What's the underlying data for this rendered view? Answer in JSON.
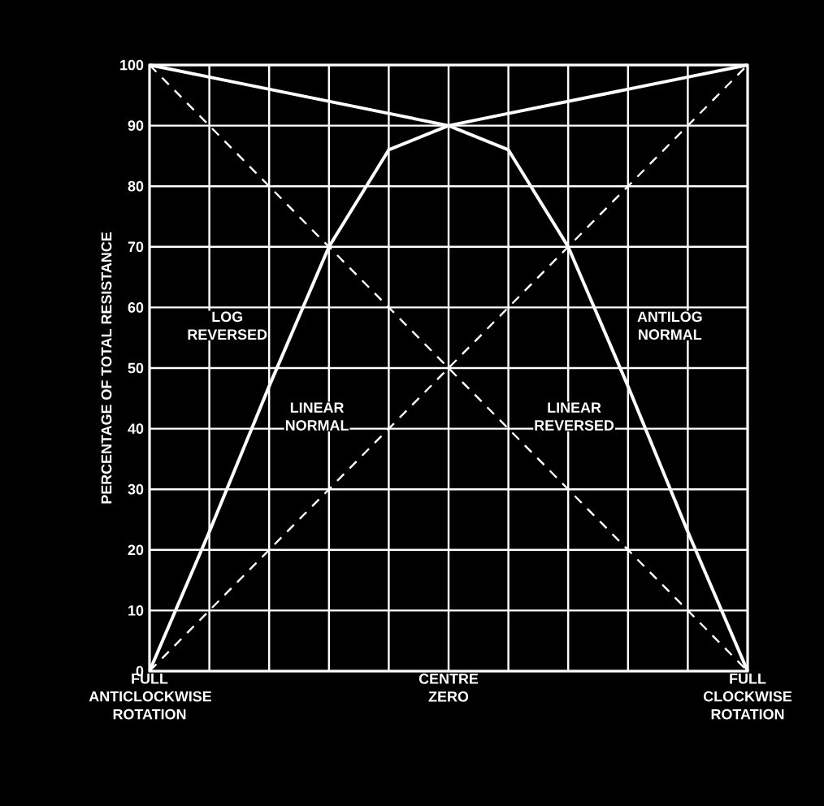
{
  "chart_data": {
    "type": "line",
    "ylabel": "PERCENTAGE OF TOTAL RESISTANCE",
    "categories": [
      "FULL ANTICLOCKWISE ROTATION",
      null,
      null,
      null,
      null,
      "CENTRE ZERO",
      null,
      null,
      null,
      null,
      "FULL CLOCKWISE ROTATION"
    ],
    "ylim": [
      0,
      100
    ],
    "yticks": [
      0,
      10,
      20,
      30,
      40,
      50,
      60,
      70,
      80,
      90,
      100
    ],
    "grid": true,
    "marker": "none",
    "series": [
      {
        "color": "#ffffff",
        "line_style": "dashed",
        "values": [
          0,
          10,
          20,
          30,
          40,
          50,
          60,
          70,
          80,
          90,
          100
        ]
      },
      {
        "color": "#ffffff",
        "line_style": "dashed",
        "values": [
          100,
          90,
          80,
          70,
          60,
          50,
          40,
          30,
          20,
          10,
          0
        ]
      },
      {
        "color": "#ffffff",
        "line_style": "solid",
        "values": [
          0,
          23,
          47,
          70,
          86,
          90,
          92,
          94,
          96,
          98,
          100
        ]
      },
      {
        "color": "#ffffff",
        "line_style": "solid",
        "values": [
          100,
          98,
          96,
          94,
          92,
          90,
          86,
          70,
          47,
          23,
          0
        ]
      }
    ],
    "annotations": [
      "LOG REVERSED",
      "LINEAR NORMAL",
      "LINEAR REVERSED",
      "ANTILOG NORMAL"
    ]
  }
}
